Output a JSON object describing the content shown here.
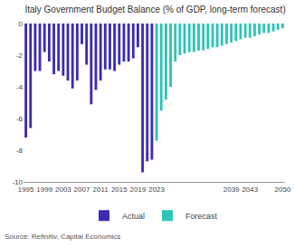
{
  "chart_data": {
    "type": "bar",
    "title": "Italy Government Budget Balance (% of GDP, long-term forecast)",
    "source": "Source: Refinitiv, Capital Economics",
    "x": [
      1995,
      1996,
      1997,
      1998,
      1999,
      2000,
      2001,
      2002,
      2003,
      2004,
      2005,
      2006,
      2007,
      2008,
      2009,
      2010,
      2011,
      2012,
      2013,
      2014,
      2015,
      2016,
      2017,
      2018,
      2019,
      2020,
      2021,
      2022,
      2023,
      2024,
      2025,
      2026,
      2027,
      2028,
      2029,
      2030,
      2031,
      2032,
      2033,
      2034,
      2035,
      2036,
      2037,
      2038,
      2039,
      2040,
      2041,
      2042,
      2043,
      2044,
      2045,
      2046,
      2047,
      2048,
      2049,
      2050
    ],
    "series": [
      {
        "name": "Actual",
        "color": "#3b2bb3",
        "values": [
          -7.2,
          -6.6,
          -3.0,
          -3.0,
          -1.8,
          -2.4,
          -3.2,
          -3.0,
          -3.3,
          -3.6,
          -4.1,
          -3.6,
          -1.3,
          -2.6,
          -5.1,
          -4.2,
          -3.6,
          -2.9,
          -2.9,
          -3.0,
          -2.6,
          -2.4,
          -2.4,
          -2.2,
          -1.5,
          -9.4,
          -8.7,
          -8.6,
          null,
          null,
          null,
          null,
          null,
          null,
          null,
          null,
          null,
          null,
          null,
          null,
          null,
          null,
          null,
          null,
          null,
          null,
          null,
          null,
          null,
          null,
          null,
          null,
          null,
          null,
          null,
          null
        ]
      },
      {
        "name": "Forecast",
        "color": "#2ec4b6",
        "values": [
          null,
          null,
          null,
          null,
          null,
          null,
          null,
          null,
          null,
          null,
          null,
          null,
          null,
          null,
          null,
          null,
          null,
          null,
          null,
          null,
          null,
          null,
          null,
          null,
          null,
          null,
          null,
          null,
          -7.4,
          -5.5,
          -4.8,
          -4.0,
          -2.4,
          -2.0,
          -1.9,
          -1.8,
          -1.8,
          -1.7,
          -1.7,
          -1.6,
          -1.5,
          -1.5,
          -1.4,
          -1.3,
          -1.2,
          -1.1,
          -1.0,
          -0.9,
          -0.9,
          -0.8,
          -0.7,
          -0.6,
          -0.6,
          -0.5,
          -0.4,
          -0.3
        ]
      }
    ],
    "xlim": [
      1994.5,
      2050.5
    ],
    "xticks": [
      1995,
      1999,
      2003,
      2007,
      2011,
      2015,
      2019,
      2023,
      2039,
      2043,
      2050
    ],
    "ylim": [
      -10,
      0
    ],
    "yticks": [
      -10,
      -8,
      -6,
      -4,
      -2,
      0
    ],
    "grid": false,
    "legend": "bottom"
  }
}
